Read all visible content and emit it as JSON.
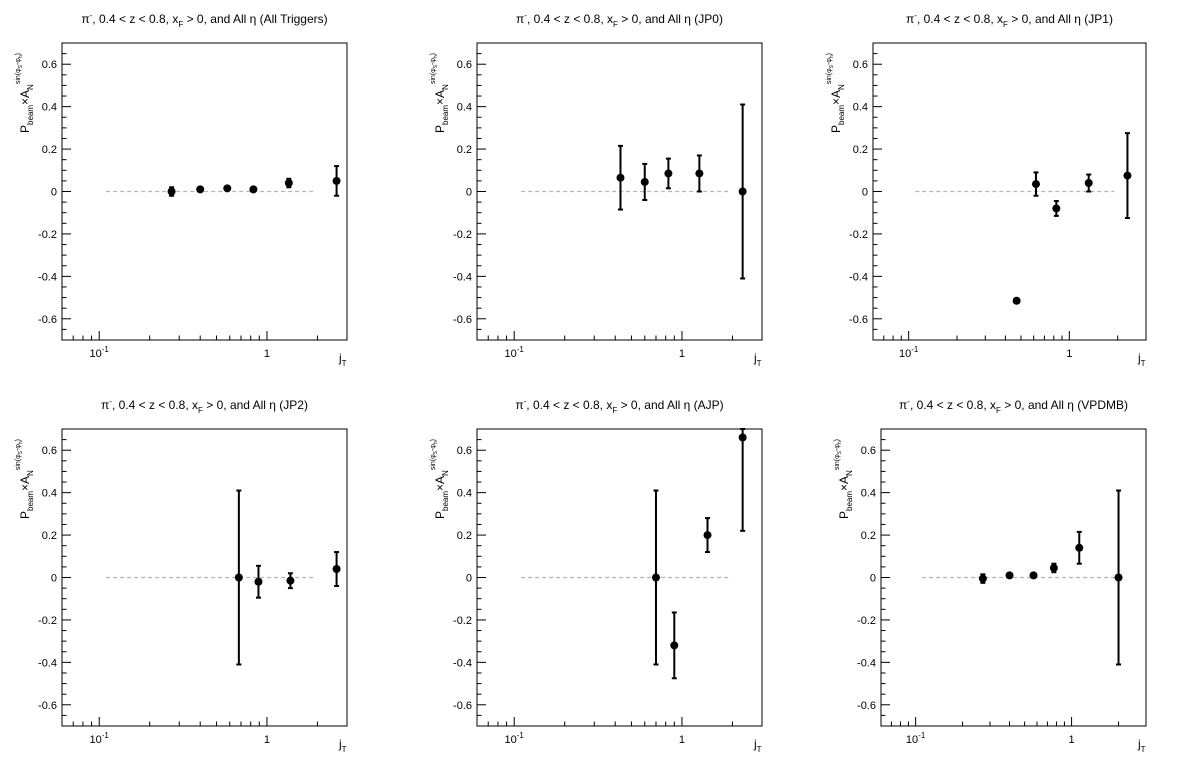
{
  "figure": {
    "panels_layout": "2 rows x 3 columns"
  },
  "chart_data": [
    {
      "type": "scatter",
      "title": "π⁻, 0.4 < z < 0.8, x_F > 0, and All η (All Triggers)",
      "title_parts": {
        "particle": "π",
        "particle_sup": "-",
        "pre_x": ", 0.4 < z < 0.8, x",
        "x_sub": "F",
        "post_x": " > 0, and All η (All Triggers)"
      },
      "xlabel": "j_T",
      "ylabel": "P_beam × A_N^sin(φ_S-φ_h)",
      "x_scale": "log",
      "xlim": [
        0.06,
        3.0
      ],
      "ylim": [
        -0.7,
        0.7
      ],
      "x_ticks": [
        "10^-1",
        "1"
      ],
      "y_ticks": [
        "-0.6",
        "-0.4",
        "-0.2",
        "0",
        "0.2",
        "0.4",
        "0.6"
      ],
      "reference_line": {
        "y": 0,
        "x_range": [
          0.11,
          1.9
        ],
        "style": "dashed gray"
      },
      "points": [
        {
          "x": 0.27,
          "y": 0.0,
          "err": 0.02
        },
        {
          "x": 0.4,
          "y": 0.01,
          "err": 0.008
        },
        {
          "x": 0.58,
          "y": 0.015,
          "err": 0.008
        },
        {
          "x": 0.83,
          "y": 0.01,
          "err": 0.008
        },
        {
          "x": 1.35,
          "y": 0.04,
          "err": 0.02
        },
        {
          "x": 2.6,
          "y": 0.05,
          "err": 0.07
        }
      ]
    },
    {
      "type": "scatter",
      "title": "π⁻, 0.4 < z < 0.8, x_F > 0, and All η (JP0)",
      "title_parts": {
        "particle": "π",
        "particle_sup": "-",
        "pre_x": ", 0.4 < z < 0.8, x",
        "x_sub": "F",
        "post_x": " > 0, and All η (JP0)"
      },
      "xlabel": "j_T",
      "ylabel": "P_beam × A_N^sin(φ_S-φ_h)",
      "x_scale": "log",
      "xlim": [
        0.06,
        3.0
      ],
      "ylim": [
        -0.7,
        0.7
      ],
      "x_ticks": [
        "10^-1",
        "1"
      ],
      "y_ticks": [
        "-0.6",
        "-0.4",
        "-0.2",
        "0",
        "0.2",
        "0.4",
        "0.6"
      ],
      "reference_line": {
        "y": 0,
        "x_range": [
          0.11,
          1.9
        ],
        "style": "dashed gray"
      },
      "points": [
        {
          "x": 0.43,
          "y": 0.065,
          "err": 0.15
        },
        {
          "x": 0.6,
          "y": 0.045,
          "err": 0.085
        },
        {
          "x": 0.83,
          "y": 0.085,
          "err": 0.07
        },
        {
          "x": 1.27,
          "y": 0.085,
          "err": 0.085
        },
        {
          "x": 2.3,
          "y": 0.0,
          "err": 0.41
        }
      ]
    },
    {
      "type": "scatter",
      "title": "π⁻, 0.4 < z < 0.8, x_F > 0, and All η (JP1)",
      "title_parts": {
        "particle": "π",
        "particle_sup": "-",
        "pre_x": ", 0.4 < z < 0.8, x",
        "x_sub": "F",
        "post_x": " > 0, and All η (JP1)"
      },
      "xlabel": "j_T",
      "ylabel": "P_beam × A_N^sin(φ_S-φ_h)",
      "x_scale": "log",
      "xlim": [
        0.06,
        3.0
      ],
      "ylim": [
        -0.7,
        0.7
      ],
      "x_ticks": [
        "10^-1",
        "1"
      ],
      "y_ticks": [
        "-0.6",
        "-0.4",
        "-0.2",
        "0",
        "0.2",
        "0.4",
        "0.6"
      ],
      "reference_line": {
        "y": 0,
        "x_range": [
          0.11,
          1.9
        ],
        "style": "dashed gray"
      },
      "points": [
        {
          "x": 0.47,
          "y": -0.515,
          "err": 0.01
        },
        {
          "x": 0.62,
          "y": 0.035,
          "err": 0.055
        },
        {
          "x": 0.83,
          "y": -0.08,
          "err": 0.035
        },
        {
          "x": 1.32,
          "y": 0.04,
          "err": 0.04
        },
        {
          "x": 2.3,
          "y": 0.075,
          "err": 0.2
        }
      ]
    },
    {
      "type": "scatter",
      "title": "π⁻, 0.4 < z < 0.8, x_F > 0, and All η (JP2)",
      "title_parts": {
        "particle": "π",
        "particle_sup": "-",
        "pre_x": ", 0.4 < z < 0.8, x",
        "x_sub": "F",
        "post_x": " > 0, and All η (JP2)"
      },
      "xlabel": "j_T",
      "ylabel": "P_beam × A_N^sin(φ_S-φ_h)",
      "x_scale": "log",
      "xlim": [
        0.06,
        3.0
      ],
      "ylim": [
        -0.7,
        0.7
      ],
      "x_ticks": [
        "10^-1",
        "1"
      ],
      "y_ticks": [
        "-0.6",
        "-0.4",
        "-0.2",
        "0",
        "0.2",
        "0.4",
        "0.6"
      ],
      "reference_line": {
        "y": 0,
        "x_range": [
          0.11,
          1.9
        ],
        "style": "dashed gray"
      },
      "points": [
        {
          "x": 0.68,
          "y": 0.0,
          "err": 0.41
        },
        {
          "x": 0.89,
          "y": -0.02,
          "err": 0.075
        },
        {
          "x": 1.38,
          "y": -0.015,
          "err": 0.035
        },
        {
          "x": 2.6,
          "y": 0.04,
          "err": 0.08
        }
      ]
    },
    {
      "type": "scatter",
      "title": "π⁻, 0.4 < z < 0.8, x_F > 0, and All η (AJP)",
      "title_parts": {
        "particle": "π",
        "particle_sup": "-",
        "pre_x": ", 0.4 < z < 0.8, x",
        "x_sub": "F",
        "post_x": " > 0, and All η (AJP)"
      },
      "xlabel": "j_T",
      "ylabel": "P_beam × A_N^sin(φ_S-φ_h)",
      "x_scale": "log",
      "xlim": [
        0.06,
        3.0
      ],
      "ylim": [
        -0.7,
        0.7
      ],
      "x_ticks": [
        "10^-1",
        "1"
      ],
      "y_ticks": [
        "-0.6",
        "-0.4",
        "-0.2",
        "0",
        "0.2",
        "0.4",
        "0.6"
      ],
      "reference_line": {
        "y": 0,
        "x_range": [
          0.11,
          1.9
        ],
        "style": "dashed gray"
      },
      "points": [
        {
          "x": 0.7,
          "y": 0.0,
          "err": 0.41
        },
        {
          "x": 0.9,
          "y": -0.32,
          "err": 0.155
        },
        {
          "x": 1.42,
          "y": 0.2,
          "err": 0.08
        },
        {
          "x": 2.3,
          "y": 0.66,
          "err": 0.44
        }
      ]
    },
    {
      "type": "scatter",
      "title": "π⁻, 0.4 < z < 0.8, x_F > 0, and All η (VPDMB)",
      "title_parts": {
        "particle": "π",
        "particle_sup": "-",
        "pre_x": ", 0.4 < z < 0.8, x",
        "x_sub": "F",
        "post_x": " > 0, and All η (VPDMB)"
      },
      "xlabel": "j_T",
      "ylabel": "P_beam × A_N^sin(φ_S-φ_h)",
      "x_scale": "log",
      "xlim": [
        0.06,
        3.0
      ],
      "ylim": [
        -0.7,
        0.7
      ],
      "x_ticks": [
        "10^-1",
        "1"
      ],
      "y_ticks": [
        "-0.6",
        "-0.4",
        "-0.2",
        "0",
        "0.2",
        "0.4",
        "0.6"
      ],
      "reference_line": {
        "y": 0,
        "x_range": [
          0.11,
          1.9
        ],
        "style": "dashed gray"
      },
      "points": [
        {
          "x": 0.27,
          "y": -0.005,
          "err": 0.02
        },
        {
          "x": 0.4,
          "y": 0.01,
          "err": 0.01
        },
        {
          "x": 0.57,
          "y": 0.01,
          "err": 0.01
        },
        {
          "x": 0.77,
          "y": 0.045,
          "err": 0.02
        },
        {
          "x": 1.12,
          "y": 0.14,
          "err": 0.075
        },
        {
          "x": 2.0,
          "y": 0.0,
          "err": 0.41
        }
      ]
    }
  ]
}
